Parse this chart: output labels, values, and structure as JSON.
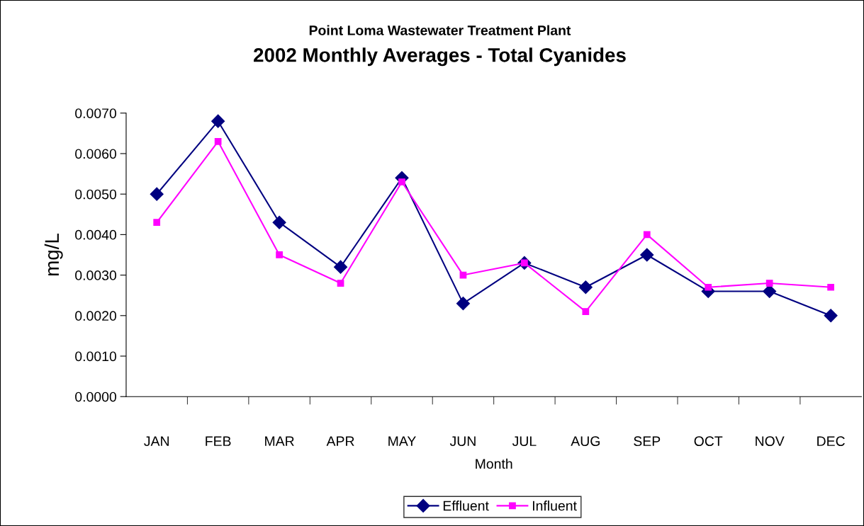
{
  "chart_data": {
    "type": "line",
    "title": "Point Loma Wastewater Treatment Plant",
    "subtitle": "2002 Monthly Averages - Total Cyanides",
    "xlabel": "Month",
    "ylabel": "mg/L",
    "categories": [
      "JAN",
      "FEB",
      "MAR",
      "APR",
      "MAY",
      "JUN",
      "JUL",
      "AUG",
      "SEP",
      "OCT",
      "NOV",
      "DEC"
    ],
    "series": [
      {
        "name": "Effluent",
        "color": "#000080",
        "marker": "diamond",
        "values": [
          0.005,
          0.0068,
          0.0043,
          0.0032,
          0.0054,
          0.0023,
          0.0033,
          0.0027,
          0.0035,
          0.0026,
          0.0026,
          0.002
        ]
      },
      {
        "name": "Influent",
        "color": "#ff00ff",
        "marker": "square",
        "values": [
          0.0043,
          0.0063,
          0.0035,
          0.0028,
          0.0053,
          0.003,
          0.0033,
          0.0021,
          0.004,
          0.0027,
          0.0028,
          0.0027
        ]
      }
    ],
    "ylim": [
      0,
      0.007
    ],
    "yticks": [
      {
        "value": 0,
        "label": "0.0000"
      },
      {
        "value": 0.001,
        "label": "0.0010"
      },
      {
        "value": 0.002,
        "label": "0.0020"
      },
      {
        "value": 0.003,
        "label": "0.0030"
      },
      {
        "value": 0.004,
        "label": "0.0040"
      },
      {
        "value": 0.005,
        "label": "0.0050"
      },
      {
        "value": 0.006,
        "label": "0.0060"
      },
      {
        "value": 0.007,
        "label": "0.0070"
      }
    ],
    "grid": false,
    "legend": "bottom",
    "line_style": "solid"
  }
}
